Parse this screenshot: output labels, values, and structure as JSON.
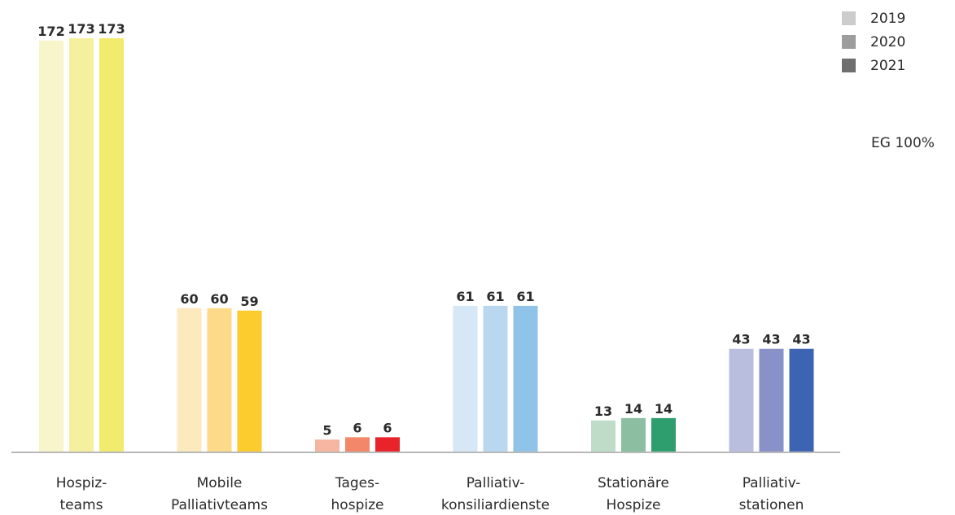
{
  "chart_data": {
    "type": "bar",
    "categories": [
      [
        "Hospiz-",
        "teams"
      ],
      [
        "Mobile",
        "Palliativteams"
      ],
      [
        "Tages-",
        "hospize"
      ],
      [
        "Palliativ-",
        "konsiliardienste"
      ],
      [
        "Stationäre",
        "Hospize"
      ],
      [
        "Palliativ-",
        "stationen"
      ]
    ],
    "series": [
      {
        "name": "2019",
        "values": [
          172,
          60,
          5,
          61,
          13,
          43
        ]
      },
      {
        "name": "2020",
        "values": [
          173,
          60,
          6,
          61,
          14,
          43
        ]
      },
      {
        "name": "2021",
        "values": [
          173,
          59,
          6,
          61,
          14,
          43
        ]
      }
    ],
    "bar_colors": [
      [
        "#f8f5cb",
        "#f5f09e",
        "#f1eb6e"
      ],
      [
        "#fdeabc",
        "#fdd98a",
        "#fccb2e"
      ],
      [
        "#f6b5a0",
        "#f2876a",
        "#e8232a"
      ],
      [
        "#d6e8f5",
        "#b9d7ef",
        "#8fc3e8"
      ],
      [
        "#bfdcc9",
        "#8cbfa2",
        "#2f9e6e"
      ],
      [
        "#b9bede",
        "#8892c8",
        "#3d63b3"
      ]
    ],
    "ylim": [
      0,
      173
    ],
    "grid": false,
    "legend_position": "top-right",
    "legend_colors": [
      "#cccccc",
      "#9d9d9d",
      "#6f6f6f"
    ],
    "annotation": "EG 100%",
    "title": "",
    "xlabel": "",
    "ylabel": ""
  }
}
